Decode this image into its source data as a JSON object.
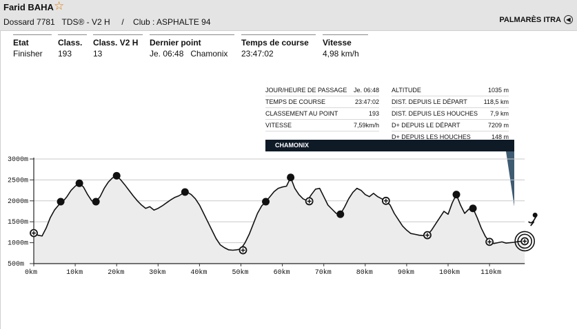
{
  "header": {
    "name": "Farid BAHA",
    "subline": "Dossard 7781   TDS® - V2 H     /    Club : ASPHALTE 94",
    "palmares": "PALMARÈS ITRA"
  },
  "stats": [
    {
      "label": "Etat",
      "value": "Finisher"
    },
    {
      "label": "Class.",
      "value": "193"
    },
    {
      "label": "Class. V2 H",
      "value": "13"
    },
    {
      "label": "Dernier point",
      "value": "Je. 06:48   Chamonix"
    },
    {
      "label": "Temps de course",
      "value": "23:47:02"
    },
    {
      "label": "Vitesse",
      "value": "4,98 km/h"
    }
  ],
  "tooltip": {
    "left": [
      {
        "label": "JOUR/HEURE DE PASSAGE",
        "value": "Je. 06:48"
      },
      {
        "label": "TEMPS DE COURSE",
        "value": "23:47:02"
      },
      {
        "label": "CLASSEMENT AU POINT",
        "value": "193"
      },
      {
        "label": "VITESSE",
        "value": "7,59km/h"
      }
    ],
    "right": [
      {
        "label": "ALTITUDE",
        "value": "1035 m"
      },
      {
        "label": "DIST. DEPUIS LE DÉPART",
        "value": "118,5 km"
      },
      {
        "label": "DIST. DEPUIS LES HOUCHES",
        "value": "7,9 km"
      },
      {
        "label": "D+ DEPUIS LE DÉPART",
        "value": "7209 m"
      },
      {
        "label": "D+ DEPUIS LES HOUCHES",
        "value": "148 m"
      }
    ],
    "place": "CHAMONIX"
  },
  "chart_data": {
    "type": "area",
    "xlabels": [
      "0km",
      "10km",
      "20km",
      "30km",
      "40km",
      "50km",
      "60km",
      "70km",
      "80km",
      "90km",
      "100km",
      "110km"
    ],
    "ylabels": [
      "3000m",
      "2500m",
      "2000m",
      "1500m",
      "1000m",
      "500m"
    ],
    "xlim": [
      0,
      118.5
    ],
    "ylim": [
      500,
      3000
    ],
    "profile": [
      [
        0,
        1230
      ],
      [
        1,
        1180
      ],
      [
        2,
        1160
      ],
      [
        3,
        1350
      ],
      [
        4,
        1600
      ],
      [
        5,
        1780
      ],
      [
        6,
        1900
      ],
      [
        7,
        1980
      ],
      [
        8,
        2100
      ],
      [
        9,
        2250
      ],
      [
        10,
        2350
      ],
      [
        11,
        2420
      ],
      [
        12,
        2330
      ],
      [
        13,
        2150
      ],
      [
        14,
        2000
      ],
      [
        15,
        1980
      ],
      [
        16,
        2100
      ],
      [
        17,
        2300
      ],
      [
        18,
        2450
      ],
      [
        19,
        2550
      ],
      [
        20,
        2600
      ],
      [
        21,
        2500
      ],
      [
        22,
        2380
      ],
      [
        23,
        2250
      ],
      [
        24,
        2120
      ],
      [
        25,
        2000
      ],
      [
        26,
        1900
      ],
      [
        27,
        1820
      ],
      [
        28,
        1860
      ],
      [
        29,
        1780
      ],
      [
        30,
        1820
      ],
      [
        31,
        1880
      ],
      [
        32,
        1950
      ],
      [
        33,
        2020
      ],
      [
        34,
        2080
      ],
      [
        35,
        2120
      ],
      [
        36,
        2180
      ],
      [
        37,
        2210
      ],
      [
        38,
        2150
      ],
      [
        39,
        2050
      ],
      [
        40,
        1900
      ],
      [
        41,
        1700
      ],
      [
        42,
        1500
      ],
      [
        43,
        1300
      ],
      [
        44,
        1100
      ],
      [
        45,
        950
      ],
      [
        46,
        880
      ],
      [
        47,
        830
      ],
      [
        48,
        820
      ],
      [
        49,
        830
      ],
      [
        50,
        850
      ],
      [
        51,
        1000
      ],
      [
        52,
        1200
      ],
      [
        53,
        1450
      ],
      [
        54,
        1700
      ],
      [
        55,
        1880
      ],
      [
        56,
        1980
      ],
      [
        57,
        2100
      ],
      [
        58,
        2220
      ],
      [
        59,
        2300
      ],
      [
        60,
        2330
      ],
      [
        61,
        2350
      ],
      [
        62,
        2560
      ],
      [
        63,
        2300
      ],
      [
        64,
        2150
      ],
      [
        65,
        2050
      ],
      [
        66,
        2000
      ],
      [
        67,
        2150
      ],
      [
        68,
        2280
      ],
      [
        69,
        2300
      ],
      [
        70,
        2100
      ],
      [
        71,
        1900
      ],
      [
        72,
        1800
      ],
      [
        73,
        1700
      ],
      [
        74,
        1680
      ],
      [
        75,
        1850
      ],
      [
        76,
        2050
      ],
      [
        77,
        2200
      ],
      [
        78,
        2300
      ],
      [
        79,
        2250
      ],
      [
        80,
        2150
      ],
      [
        81,
        2100
      ],
      [
        82,
        2180
      ],
      [
        83,
        2100
      ],
      [
        84,
        2050
      ],
      [
        85,
        2000
      ],
      [
        86,
        1900
      ],
      [
        87,
        1700
      ],
      [
        88,
        1550
      ],
      [
        89,
        1400
      ],
      [
        90,
        1300
      ],
      [
        91,
        1220
      ],
      [
        92,
        1200
      ],
      [
        93,
        1180
      ],
      [
        94,
        1170
      ],
      [
        95,
        1180
      ],
      [
        96,
        1300
      ],
      [
        97,
        1450
      ],
      [
        98,
        1600
      ],
      [
        99,
        1750
      ],
      [
        100,
        1680
      ],
      [
        101,
        1950
      ],
      [
        102,
        2150
      ],
      [
        103,
        1900
      ],
      [
        104,
        1700
      ],
      [
        105,
        1800
      ],
      [
        106,
        1820
      ],
      [
        107,
        1600
      ],
      [
        108,
        1350
      ],
      [
        109,
        1150
      ],
      [
        110,
        1020
      ],
      [
        111,
        980
      ],
      [
        112,
        1000
      ],
      [
        113,
        1020
      ],
      [
        114,
        990
      ],
      [
        115,
        1000
      ],
      [
        116,
        1010
      ],
      [
        117,
        1030
      ],
      [
        118.5,
        1035
      ]
    ],
    "checkpoints": [
      {
        "km": 0,
        "alt": 1230,
        "style": "open"
      },
      {
        "km": 6.5,
        "alt": 1980,
        "style": "filled"
      },
      {
        "km": 11,
        "alt": 2420,
        "style": "filled"
      },
      {
        "km": 15,
        "alt": 1980,
        "style": "filled"
      },
      {
        "km": 20,
        "alt": 2600,
        "style": "filled"
      },
      {
        "km": 36.5,
        "alt": 2210,
        "style": "filled"
      },
      {
        "km": 50.5,
        "alt": 820,
        "style": "open"
      },
      {
        "km": 56,
        "alt": 1980,
        "style": "filled"
      },
      {
        "km": 62,
        "alt": 2560,
        "style": "filled"
      },
      {
        "km": 66.5,
        "alt": 1990,
        "style": "open"
      },
      {
        "km": 74,
        "alt": 1680,
        "style": "filled"
      },
      {
        "km": 85,
        "alt": 2000,
        "style": "open"
      },
      {
        "km": 95,
        "alt": 1180,
        "style": "open"
      },
      {
        "km": 102,
        "alt": 2150,
        "style": "filled"
      },
      {
        "km": 106,
        "alt": 1820,
        "style": "filled"
      },
      {
        "km": 110,
        "alt": 1020,
        "style": "open"
      },
      {
        "km": 118.5,
        "alt": 1035,
        "style": "finish"
      }
    ]
  },
  "colors": {
    "fill": "#ececec",
    "line": "#111111",
    "dark": "#0e1a26",
    "accent": "#e07a00"
  }
}
